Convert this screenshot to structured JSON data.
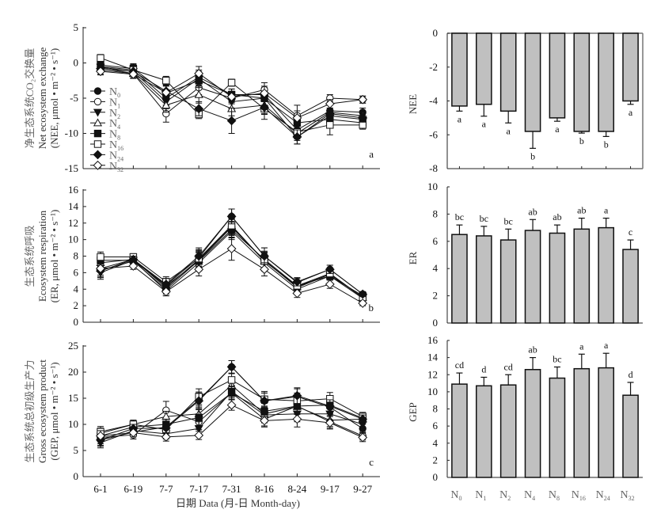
{
  "chart_data": [
    {
      "id": "a",
      "type": "line",
      "panel_letter": "a",
      "ylabel_cn": "净生态系统CO₂交换量",
      "ylabel_en": "Net ecosystem exchange",
      "ylabel_unit": "(NEE, μmol • m⁻² • s⁻¹)",
      "ylim": [
        -15,
        5
      ],
      "yticks": [
        5,
        0,
        -5,
        -10,
        -15
      ],
      "x": [
        "6-1",
        "6-19",
        "7-7",
        "7-17",
        "7-31",
        "8-16",
        "8-24",
        "9-17",
        "9-27"
      ],
      "series": [
        {
          "name": "N0",
          "marker": "circle-filled",
          "values": [
            -0.5,
            -1.0,
            -5.0,
            -2.0,
            -4.5,
            -4.5,
            -9.5,
            -6.8,
            -7.0
          ],
          "err": [
            0.6,
            0.8,
            1.0,
            1.0,
            0.8,
            1.0,
            1.0,
            1.0,
            0.6
          ]
        },
        {
          "name": "N1",
          "marker": "circle-open",
          "values": [
            -1.0,
            -1.5,
            -7.2,
            -3.5,
            -5.0,
            -3.8,
            -7.5,
            -5.0,
            -5.2
          ],
          "err": [
            0.6,
            0.6,
            1.2,
            1.0,
            0.8,
            1.0,
            1.5,
            0.5,
            0.5
          ]
        },
        {
          "name": "N2",
          "marker": "triangle-down-filled",
          "values": [
            -0.6,
            -1.2,
            -5.5,
            -2.2,
            -5.5,
            -5.0,
            -10.5,
            -7.5,
            -8.0
          ],
          "err": [
            0.5,
            0.7,
            1.0,
            1.0,
            1.0,
            1.0,
            1.0,
            0.6,
            0.6
          ]
        },
        {
          "name": "N4",
          "marker": "triangle-up-open",
          "values": [
            -0.7,
            -1.5,
            -6.0,
            -4.5,
            -6.5,
            -6.0,
            -10.0,
            -7.0,
            -7.5
          ],
          "err": [
            0.5,
            0.6,
            1.0,
            1.2,
            1.0,
            1.2,
            1.0,
            0.6,
            0.6
          ]
        },
        {
          "name": "N8",
          "marker": "square-filled",
          "values": [
            -0.3,
            -0.8,
            -4.3,
            -2.5,
            -4.5,
            -5.0,
            -8.5,
            -8.0,
            -8.5
          ],
          "err": [
            0.5,
            0.7,
            1.0,
            1.0,
            0.8,
            1.0,
            1.0,
            0.6,
            0.6
          ]
        },
        {
          "name": "N16",
          "marker": "square-open",
          "values": [
            0.7,
            -1.0,
            -2.5,
            -7.3,
            -2.8,
            -6.5,
            -9.8,
            -8.8,
            -8.8
          ],
          "err": [
            0.5,
            0.7,
            0.6,
            0.6,
            0.5,
            1.5,
            1.0,
            1.4,
            0.6
          ]
        },
        {
          "name": "N24",
          "marker": "diamond-filled",
          "values": [
            -0.8,
            -1.2,
            -4.0,
            -6.5,
            -8.2,
            -6.3,
            -10.5,
            -7.2,
            -7.8
          ],
          "err": [
            0.5,
            0.7,
            1.0,
            1.0,
            1.8,
            1.0,
            1.0,
            0.6,
            0.6
          ]
        },
        {
          "name": "N32",
          "marker": "diamond-open",
          "values": [
            -1.2,
            -1.6,
            -4.2,
            -1.5,
            -4.8,
            -4.3,
            -7.8,
            -5.8,
            -5.2
          ],
          "err": [
            0.5,
            0.6,
            1.0,
            1.0,
            0.8,
            1.0,
            1.0,
            0.6,
            0.5
          ]
        }
      ],
      "legend": [
        "N0",
        "N1",
        "N2",
        "N4",
        "N8",
        "N16",
        "N24",
        "N32"
      ],
      "legend_position": "bottom-left"
    },
    {
      "id": "b",
      "type": "line",
      "panel_letter": "b",
      "ylabel_cn": "生态系统呼吸",
      "ylabel_en": "Ecosystem respiration",
      "ylabel_unit": "(ER, μmol • m⁻² • s⁻¹)",
      "ylim": [
        0,
        16
      ],
      "yticks": [
        16,
        14,
        12,
        10,
        8,
        6,
        4,
        2,
        0
      ],
      "x": [
        "6-1",
        "6-19",
        "7-7",
        "7-17",
        "7-31",
        "8-16",
        "8-24",
        "9-17",
        "9-27"
      ],
      "series": [
        {
          "name": "N0",
          "marker": "circle-filled",
          "values": [
            6.5,
            7.6,
            4.5,
            7.8,
            12.8,
            8.0,
            4.8,
            6.4,
            3.4
          ],
          "err": [
            0.8,
            0.4,
            0.7,
            1.0,
            0.9,
            1.0,
            0.5,
            0.5,
            0.3
          ]
        },
        {
          "name": "N1",
          "marker": "circle-open",
          "values": [
            6.3,
            7.4,
            4.0,
            7.5,
            11.5,
            7.5,
            4.2,
            5.8,
            3.0
          ],
          "err": [
            0.8,
            0.4,
            0.6,
            1.0,
            1.0,
            1.0,
            0.5,
            0.5,
            0.3
          ]
        },
        {
          "name": "N2",
          "marker": "triangle-down-filled",
          "values": [
            6.0,
            7.5,
            3.8,
            7.2,
            11.0,
            7.2,
            4.0,
            5.6,
            2.9
          ],
          "err": [
            0.8,
            0.4,
            0.6,
            1.0,
            1.0,
            1.0,
            0.5,
            0.5,
            0.3
          ]
        },
        {
          "name": "N4",
          "marker": "triangle-up-open",
          "values": [
            7.2,
            7.6,
            4.2,
            7.6,
            11.6,
            7.4,
            4.3,
            5.8,
            3.0
          ],
          "err": [
            0.8,
            0.4,
            0.6,
            1.0,
            1.0,
            1.0,
            0.5,
            0.5,
            0.3
          ]
        },
        {
          "name": "N8",
          "marker": "square-filled",
          "values": [
            7.5,
            7.5,
            4.4,
            7.4,
            11.2,
            7.6,
            4.4,
            5.6,
            3.2
          ],
          "err": [
            0.8,
            0.4,
            0.6,
            1.0,
            1.0,
            1.0,
            0.5,
            0.5,
            0.3
          ]
        },
        {
          "name": "N16",
          "marker": "square-open",
          "values": [
            7.9,
            7.9,
            4.9,
            7.7,
            11.7,
            7.4,
            4.4,
            5.9,
            3.0
          ],
          "err": [
            0.6,
            0.4,
            0.6,
            1.0,
            1.0,
            1.0,
            0.5,
            0.5,
            0.3
          ]
        },
        {
          "name": "N24",
          "marker": "diamond-filled",
          "values": [
            6.2,
            7.6,
            4.6,
            8.0,
            12.8,
            8.0,
            4.9,
            6.4,
            3.4
          ],
          "err": [
            0.8,
            0.4,
            0.7,
            1.0,
            0.9,
            1.0,
            0.5,
            0.5,
            0.3
          ]
        },
        {
          "name": "N32",
          "marker": "diamond-open",
          "values": [
            6.5,
            6.8,
            3.7,
            6.4,
            8.9,
            6.4,
            3.5,
            4.6,
            2.3
          ],
          "err": [
            0.8,
            0.4,
            0.5,
            0.8,
            1.4,
            0.8,
            0.5,
            0.5,
            0.3
          ]
        }
      ]
    },
    {
      "id": "c",
      "type": "line",
      "panel_letter": "c",
      "ylabel_cn": "生态系统总初级生产力",
      "ylabel_en": "Gross ecosystem product",
      "ylabel_unit": "(GEP, μmol • m⁻² • s⁻¹)",
      "xlabel": "日期 Data (月-日 Month-day)",
      "ylim": [
        0,
        25
      ],
      "yticks": [
        25,
        20,
        15,
        10,
        5,
        0
      ],
      "x": [
        "6-1",
        "6-19",
        "7-7",
        "7-17",
        "7-31",
        "8-16",
        "8-24",
        "9-17",
        "9-27"
      ],
      "series": [
        {
          "name": "N0",
          "marker": "circle-filled",
          "values": [
            7.0,
            8.5,
            9.5,
            14.7,
            21.0,
            14.5,
            15.3,
            13.3,
            9.2
          ],
          "err": [
            1.2,
            0.8,
            1.0,
            1.5,
            1.2,
            1.5,
            1.5,
            1.2,
            0.8
          ]
        },
        {
          "name": "N1",
          "marker": "circle-open",
          "values": [
            7.5,
            8.0,
            12.7,
            10.5,
            16.0,
            11.0,
            13.5,
            10.5,
            7.8
          ],
          "err": [
            1.2,
            0.8,
            1.7,
            1.5,
            1.2,
            1.5,
            1.5,
            1.2,
            0.8
          ]
        },
        {
          "name": "N2",
          "marker": "triangle-down-filled",
          "values": [
            6.5,
            8.8,
            8.2,
            9.2,
            16.3,
            11.8,
            12.0,
            12.0,
            10.0
          ],
          "err": [
            1.0,
            0.8,
            1.0,
            1.5,
            1.2,
            1.5,
            1.5,
            1.2,
            0.8
          ]
        },
        {
          "name": "N4",
          "marker": "triangle-up-open",
          "values": [
            8.3,
            10.0,
            11.5,
            12.0,
            17.5,
            12.0,
            13.4,
            10.8,
            11.0
          ],
          "err": [
            1.0,
            0.8,
            1.0,
            1.5,
            1.2,
            1.5,
            1.5,
            1.2,
            0.8
          ]
        },
        {
          "name": "N8",
          "marker": "square-filled",
          "values": [
            7.8,
            9.5,
            10.0,
            11.3,
            16.0,
            12.5,
            13.5,
            13.7,
            11.2
          ],
          "err": [
            1.0,
            0.8,
            1.0,
            1.5,
            1.2,
            1.5,
            1.5,
            1.2,
            0.8
          ]
        },
        {
          "name": "N16",
          "marker": "square-open",
          "values": [
            8.6,
            10.0,
            9.0,
            15.3,
            18.5,
            14.8,
            14.5,
            14.9,
            11.5
          ],
          "err": [
            1.0,
            0.8,
            1.0,
            1.5,
            1.2,
            1.5,
            1.5,
            1.2,
            0.8
          ]
        },
        {
          "name": "N24",
          "marker": "diamond-filled",
          "values": [
            7.0,
            9.2,
            9.3,
            14.5,
            21.0,
            14.5,
            15.5,
            13.5,
            11.0
          ],
          "err": [
            1.0,
            0.8,
            1.0,
            1.5,
            1.2,
            1.5,
            1.5,
            1.2,
            0.8
          ]
        },
        {
          "name": "N32",
          "marker": "diamond-open",
          "values": [
            7.8,
            8.4,
            7.6,
            7.9,
            13.7,
            10.7,
            11.0,
            10.3,
            7.5
          ],
          "err": [
            1.0,
            0.8,
            0.8,
            0.8,
            1.0,
            1.0,
            1.5,
            1.2,
            0.8
          ]
        }
      ]
    },
    {
      "id": "d",
      "type": "bar",
      "ylabel": "NEE",
      "ylim": [
        -8,
        0
      ],
      "yticks": [
        0,
        -2,
        -4,
        -6,
        -8
      ],
      "categories": [
        "N0",
        "N1",
        "N2",
        "N4",
        "N8",
        "N16",
        "N24",
        "N32"
      ],
      "values": [
        -4.3,
        -4.2,
        -4.6,
        -5.8,
        -5.0,
        -5.8,
        -5.8,
        -4.0
      ],
      "err": [
        0.3,
        0.7,
        0.7,
        1.0,
        0.2,
        0.1,
        0.3,
        0.2
      ],
      "letters": [
        "a",
        "a",
        "a",
        "b",
        "a",
        "b",
        "b",
        "a"
      ]
    },
    {
      "id": "e",
      "type": "bar",
      "ylabel": "ER",
      "ylim": [
        0,
        10
      ],
      "yticks": [
        10,
        8,
        6,
        4,
        2,
        0
      ],
      "categories": [
        "N0",
        "N1",
        "N2",
        "N4",
        "N8",
        "N16",
        "N24",
        "N32"
      ],
      "values": [
        6.5,
        6.4,
        6.1,
        6.8,
        6.6,
        6.9,
        7.0,
        5.4
      ],
      "err": [
        0.7,
        0.7,
        0.8,
        0.8,
        0.6,
        0.8,
        0.7,
        0.7
      ],
      "letters": [
        "bc",
        "bc",
        "bc",
        "ab",
        "ab",
        "ab",
        "a",
        "c"
      ]
    },
    {
      "id": "f",
      "type": "bar",
      "ylabel": "GEP",
      "ylim": [
        0,
        16
      ],
      "yticks": [
        16,
        14,
        12,
        10,
        8,
        6,
        4,
        2,
        0
      ],
      "categories": [
        "N0",
        "N1",
        "N2",
        "N4",
        "N8",
        "N16",
        "N24",
        "N32"
      ],
      "category_labels": [
        [
          "N",
          "0"
        ],
        [
          "N",
          "1"
        ],
        [
          "N",
          "2"
        ],
        [
          "N",
          "4"
        ],
        [
          "N",
          "8"
        ],
        [
          "N",
          "16"
        ],
        [
          "N",
          "24"
        ],
        [
          "N",
          "32"
        ]
      ],
      "values": [
        10.9,
        10.7,
        10.8,
        12.6,
        11.6,
        12.7,
        12.8,
        9.6
      ],
      "err": [
        1.3,
        1.0,
        1.2,
        1.4,
        1.3,
        1.7,
        1.7,
        1.5
      ],
      "letters": [
        "cd",
        "d",
        "cd",
        "ab",
        "bc",
        "a",
        "a",
        "d"
      ]
    }
  ],
  "style": {
    "bar_fill": "#c0c0c0",
    "line_color": "#111111",
    "axis_color": "#222222"
  }
}
